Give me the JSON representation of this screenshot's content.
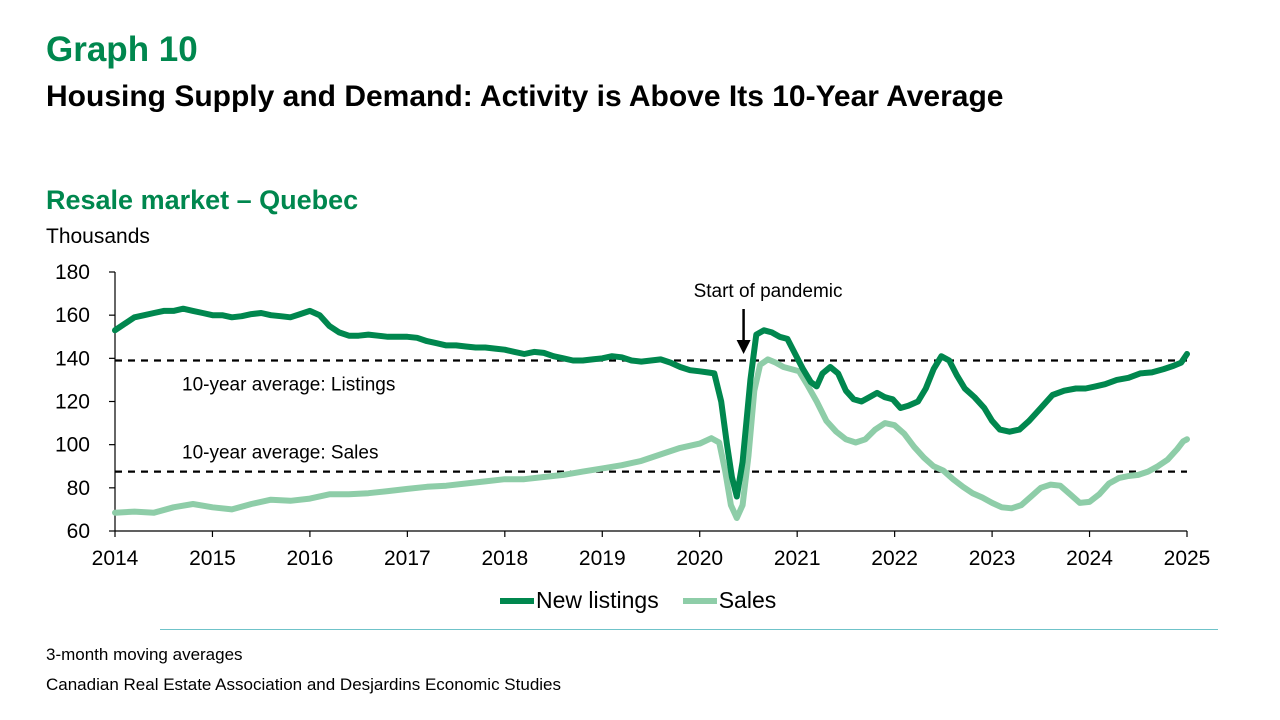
{
  "header": {
    "graph_number": "Graph 10",
    "title": "Housing Supply and Demand: Activity is Above Its 10-Year Average"
  },
  "footer": {
    "note": "3-month moving averages",
    "source": "Canadian Real Estate Association and Desjardins Economic Studies"
  },
  "chart_data": {
    "type": "line",
    "title": "Resale market – Quebec",
    "ylabel": "Thousands",
    "xlabel": "",
    "ylim": [
      60,
      180
    ],
    "yticks": [
      60,
      80,
      100,
      120,
      140,
      160,
      180
    ],
    "xlim": [
      2014,
      2025
    ],
    "xticks": [
      "2014",
      "2015",
      "2016",
      "2017",
      "2018",
      "2019",
      "2020",
      "2021",
      "2022",
      "2023",
      "2024",
      "2025"
    ],
    "grid": false,
    "legend_position": "bottom",
    "reference_lines": [
      {
        "label": "10-year average: Listings",
        "value": 139,
        "style": "dashed"
      },
      {
        "label": "10-year average: Sales",
        "value": 87.5,
        "style": "dashed"
      }
    ],
    "annotations": [
      {
        "text": "Start of pandemic",
        "x": 2020.45,
        "y": 137
      }
    ],
    "series": [
      {
        "name": "New listings",
        "color": "#00874E",
        "points": [
          [
            2014.0,
            153
          ],
          [
            2014.1,
            156
          ],
          [
            2014.2,
            159
          ],
          [
            2014.3,
            160
          ],
          [
            2014.4,
            161
          ],
          [
            2014.5,
            162
          ],
          [
            2014.6,
            162
          ],
          [
            2014.7,
            163
          ],
          [
            2014.8,
            162
          ],
          [
            2014.9,
            161
          ],
          [
            2015.0,
            160
          ],
          [
            2015.1,
            160
          ],
          [
            2015.2,
            159
          ],
          [
            2015.3,
            159.5
          ],
          [
            2015.4,
            160.5
          ],
          [
            2015.5,
            161
          ],
          [
            2015.6,
            160
          ],
          [
            2015.7,
            159.5
          ],
          [
            2015.8,
            159
          ],
          [
            2015.9,
            160.5
          ],
          [
            2016.0,
            162
          ],
          [
            2016.1,
            160
          ],
          [
            2016.2,
            155
          ],
          [
            2016.3,
            152
          ],
          [
            2016.4,
            150.5
          ],
          [
            2016.5,
            150.5
          ],
          [
            2016.6,
            151
          ],
          [
            2016.7,
            150.5
          ],
          [
            2016.8,
            150
          ],
          [
            2016.9,
            150
          ],
          [
            2017.0,
            150
          ],
          [
            2017.1,
            149.5
          ],
          [
            2017.2,
            148
          ],
          [
            2017.3,
            147
          ],
          [
            2017.4,
            146
          ],
          [
            2017.5,
            146
          ],
          [
            2017.6,
            145.5
          ],
          [
            2017.7,
            145
          ],
          [
            2017.8,
            145
          ],
          [
            2017.9,
            144.5
          ],
          [
            2018.0,
            144
          ],
          [
            2018.1,
            143
          ],
          [
            2018.2,
            142
          ],
          [
            2018.3,
            143
          ],
          [
            2018.4,
            142.5
          ],
          [
            2018.5,
            141
          ],
          [
            2018.6,
            140
          ],
          [
            2018.7,
            139
          ],
          [
            2018.8,
            139
          ],
          [
            2018.9,
            139.5
          ],
          [
            2019.0,
            140
          ],
          [
            2019.1,
            141
          ],
          [
            2019.2,
            140.5
          ],
          [
            2019.3,
            139
          ],
          [
            2019.4,
            138.5
          ],
          [
            2019.5,
            139
          ],
          [
            2019.6,
            139.5
          ],
          [
            2019.7,
            138
          ],
          [
            2019.8,
            136
          ],
          [
            2019.9,
            134.5
          ],
          [
            2020.0,
            134
          ],
          [
            2020.08,
            133.5
          ],
          [
            2020.15,
            133
          ],
          [
            2020.22,
            120
          ],
          [
            2020.28,
            100
          ],
          [
            2020.33,
            85
          ],
          [
            2020.38,
            76
          ],
          [
            2020.44,
            92
          ],
          [
            2020.52,
            130
          ],
          [
            2020.58,
            151
          ],
          [
            2020.66,
            153
          ],
          [
            2020.74,
            152
          ],
          [
            2020.82,
            150
          ],
          [
            2020.9,
            149
          ],
          [
            2020.98,
            142
          ],
          [
            2021.06,
            135
          ],
          [
            2021.14,
            129
          ],
          [
            2021.2,
            127
          ],
          [
            2021.26,
            133
          ],
          [
            2021.34,
            136
          ],
          [
            2021.42,
            133
          ],
          [
            2021.5,
            125
          ],
          [
            2021.58,
            121
          ],
          [
            2021.66,
            120
          ],
          [
            2021.74,
            122
          ],
          [
            2021.82,
            124
          ],
          [
            2021.9,
            122
          ],
          [
            2021.98,
            121
          ],
          [
            2022.06,
            117
          ],
          [
            2022.14,
            118
          ],
          [
            2022.24,
            120
          ],
          [
            2022.32,
            126
          ],
          [
            2022.4,
            135
          ],
          [
            2022.48,
            141
          ],
          [
            2022.56,
            139
          ],
          [
            2022.64,
            132
          ],
          [
            2022.72,
            126
          ],
          [
            2022.82,
            122
          ],
          [
            2022.92,
            117
          ],
          [
            2023.0,
            111
          ],
          [
            2023.08,
            107
          ],
          [
            2023.18,
            106
          ],
          [
            2023.28,
            107
          ],
          [
            2023.38,
            111
          ],
          [
            2023.5,
            117
          ],
          [
            2023.62,
            123
          ],
          [
            2023.74,
            125
          ],
          [
            2023.86,
            126
          ],
          [
            2023.96,
            126
          ],
          [
            2024.06,
            127
          ],
          [
            2024.16,
            128
          ],
          [
            2024.28,
            130
          ],
          [
            2024.4,
            131
          ],
          [
            2024.52,
            133
          ],
          [
            2024.64,
            133.5
          ],
          [
            2024.76,
            135
          ],
          [
            2024.86,
            136.5
          ],
          [
            2024.94,
            138
          ],
          [
            2025.0,
            142
          ]
        ]
      },
      {
        "name": "Sales",
        "color": "#8ECDA8",
        "points": [
          [
            2014.0,
            68.5
          ],
          [
            2014.2,
            69
          ],
          [
            2014.4,
            68.5
          ],
          [
            2014.6,
            71
          ],
          [
            2014.8,
            72.5
          ],
          [
            2015.0,
            71
          ],
          [
            2015.2,
            70
          ],
          [
            2015.4,
            72.5
          ],
          [
            2015.6,
            74.5
          ],
          [
            2015.8,
            74
          ],
          [
            2016.0,
            75
          ],
          [
            2016.2,
            77
          ],
          [
            2016.4,
            77
          ],
          [
            2016.6,
            77.5
          ],
          [
            2016.8,
            78.5
          ],
          [
            2017.0,
            79.5
          ],
          [
            2017.2,
            80.5
          ],
          [
            2017.4,
            81
          ],
          [
            2017.6,
            82
          ],
          [
            2017.8,
            83
          ],
          [
            2018.0,
            84
          ],
          [
            2018.2,
            84
          ],
          [
            2018.4,
            85
          ],
          [
            2018.6,
            86
          ],
          [
            2018.8,
            87.5
          ],
          [
            2019.0,
            89
          ],
          [
            2019.2,
            90.5
          ],
          [
            2019.4,
            92.5
          ],
          [
            2019.6,
            95.5
          ],
          [
            2019.8,
            98.5
          ],
          [
            2020.0,
            100.5
          ],
          [
            2020.12,
            103
          ],
          [
            2020.2,
            101
          ],
          [
            2020.26,
            88
          ],
          [
            2020.32,
            72
          ],
          [
            2020.38,
            66
          ],
          [
            2020.44,
            72
          ],
          [
            2020.5,
            95
          ],
          [
            2020.56,
            125
          ],
          [
            2020.62,
            137
          ],
          [
            2020.7,
            139.5
          ],
          [
            2020.78,
            138
          ],
          [
            2020.86,
            136
          ],
          [
            2020.94,
            135
          ],
          [
            2021.02,
            134
          ],
          [
            2021.1,
            128
          ],
          [
            2021.2,
            120
          ],
          [
            2021.3,
            111
          ],
          [
            2021.4,
            106
          ],
          [
            2021.5,
            102.5
          ],
          [
            2021.6,
            101
          ],
          [
            2021.7,
            102.5
          ],
          [
            2021.8,
            107
          ],
          [
            2021.9,
            110
          ],
          [
            2022.0,
            109
          ],
          [
            2022.1,
            105
          ],
          [
            2022.2,
            99
          ],
          [
            2022.3,
            94
          ],
          [
            2022.4,
            90
          ],
          [
            2022.5,
            88
          ],
          [
            2022.6,
            84
          ],
          [
            2022.7,
            80.5
          ],
          [
            2022.8,
            77.5
          ],
          [
            2022.9,
            75.5
          ],
          [
            2023.0,
            73
          ],
          [
            2023.1,
            71
          ],
          [
            2023.2,
            70.5
          ],
          [
            2023.3,
            72
          ],
          [
            2023.4,
            76
          ],
          [
            2023.5,
            80
          ],
          [
            2023.6,
            81.5
          ],
          [
            2023.7,
            81
          ],
          [
            2023.8,
            77
          ],
          [
            2023.9,
            73
          ],
          [
            2024.0,
            73.5
          ],
          [
            2024.1,
            77
          ],
          [
            2024.2,
            82
          ],
          [
            2024.3,
            84.5
          ],
          [
            2024.4,
            85.5
          ],
          [
            2024.5,
            86
          ],
          [
            2024.6,
            87.5
          ],
          [
            2024.7,
            90
          ],
          [
            2024.8,
            93
          ],
          [
            2024.9,
            98
          ],
          [
            2024.96,
            101.5
          ],
          [
            2025.0,
            102.5
          ]
        ]
      }
    ]
  }
}
